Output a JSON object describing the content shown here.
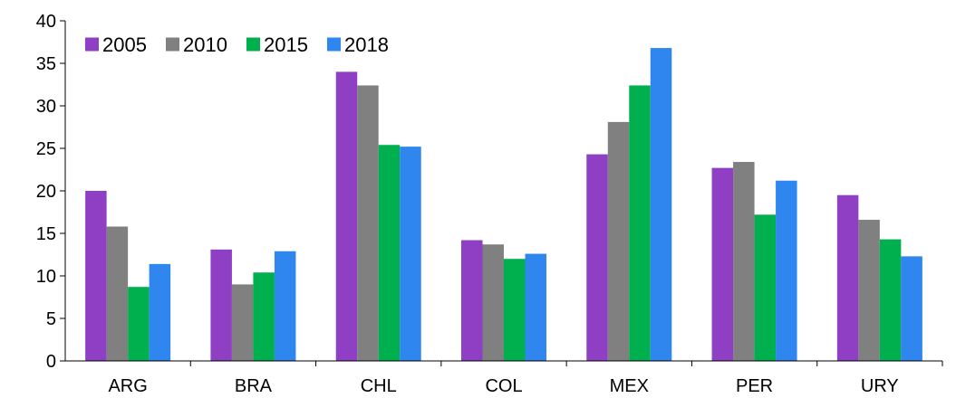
{
  "chart_data": {
    "type": "bar",
    "categories": [
      "ARG",
      "BRA",
      "CHL",
      "COL",
      "MEX",
      "PER",
      "URY"
    ],
    "series": [
      {
        "name": "2005",
        "color": "#8E3FC4",
        "values": [
          20.0,
          13.1,
          34.0,
          14.2,
          24.3,
          22.7,
          19.5
        ]
      },
      {
        "name": "2010",
        "color": "#808080",
        "values": [
          15.8,
          9.0,
          32.4,
          13.7,
          28.1,
          23.4,
          16.6
        ]
      },
      {
        "name": "2015",
        "color": "#00B04F",
        "values": [
          8.7,
          10.4,
          25.4,
          12.0,
          32.4,
          17.2,
          14.3
        ]
      },
      {
        "name": "2018",
        "color": "#2F86EE",
        "values": [
          11.4,
          12.9,
          25.2,
          12.6,
          36.8,
          21.2,
          12.3
        ]
      }
    ],
    "ylim": [
      0,
      40
    ],
    "yticks": [
      0,
      5,
      10,
      15,
      20,
      25,
      30,
      35,
      40
    ],
    "legend_position": "top-left",
    "grid": false,
    "title": "",
    "xlabel": "",
    "ylabel": ""
  }
}
